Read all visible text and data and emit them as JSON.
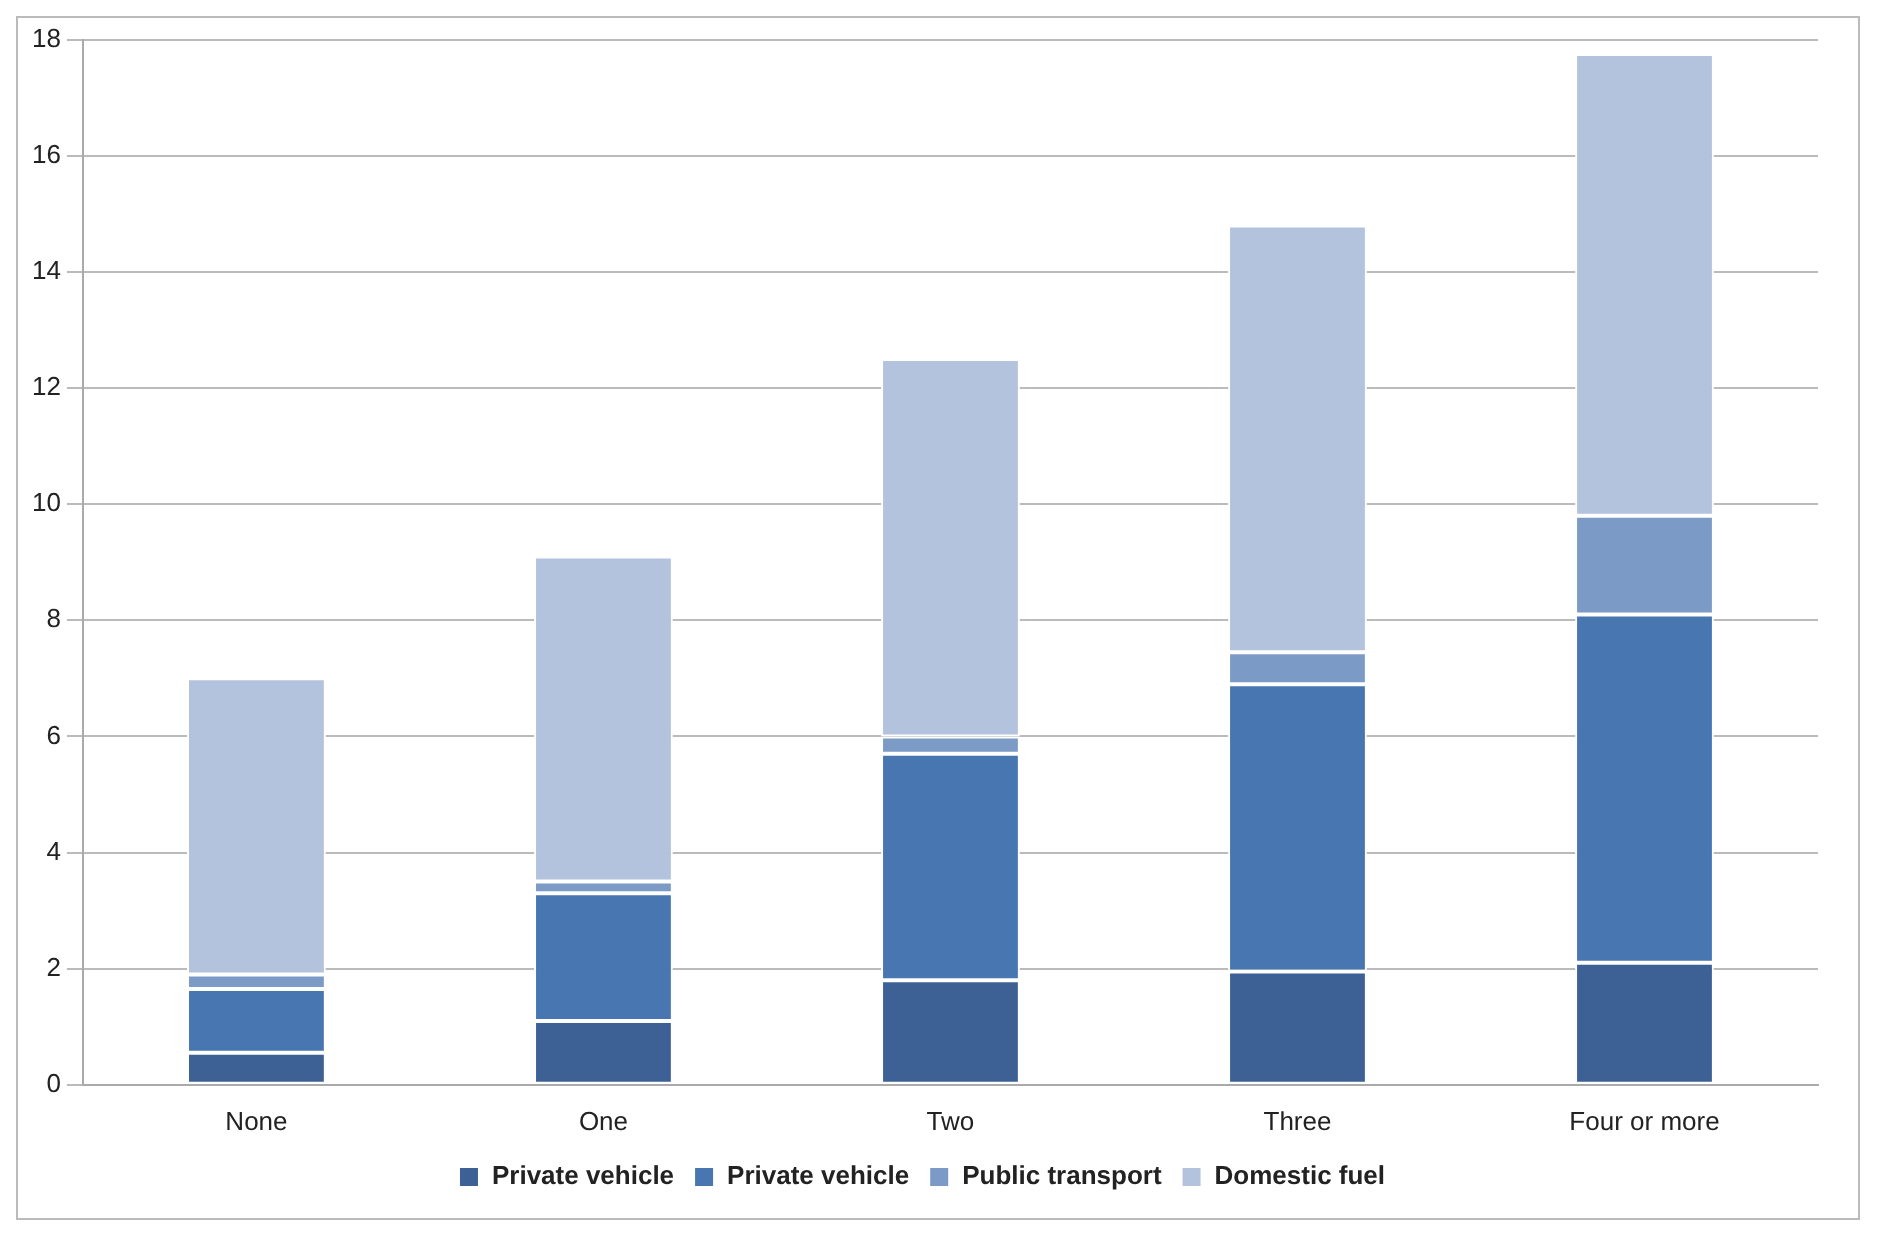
{
  "chart_data": {
    "type": "bar",
    "stacked": true,
    "categories": [
      "None",
      "One",
      "Two",
      "Three",
      "Four or more"
    ],
    "series": [
      {
        "name": "Private vehicle",
        "color": "#3d6195",
        "values": [
          0.55,
          1.1,
          1.8,
          1.95,
          2.1
        ]
      },
      {
        "name": "Private vehicle",
        "color": "#4876b0",
        "values": [
          1.1,
          2.2,
          3.9,
          4.95,
          6.0
        ]
      },
      {
        "name": "Public transport",
        "color": "#7b9ac6",
        "values": [
          0.25,
          0.2,
          0.3,
          0.55,
          1.7
        ]
      },
      {
        "name": "Domestic fuel",
        "color": "#b3c2dd",
        "values": [
          5.1,
          5.6,
          6.5,
          7.35,
          7.95
        ]
      }
    ],
    "ylim": [
      0,
      18
    ],
    "yticks": [
      0,
      2,
      4,
      6,
      8,
      10,
      12,
      14,
      16,
      18
    ],
    "grid": "y",
    "legend": "bottom"
  }
}
